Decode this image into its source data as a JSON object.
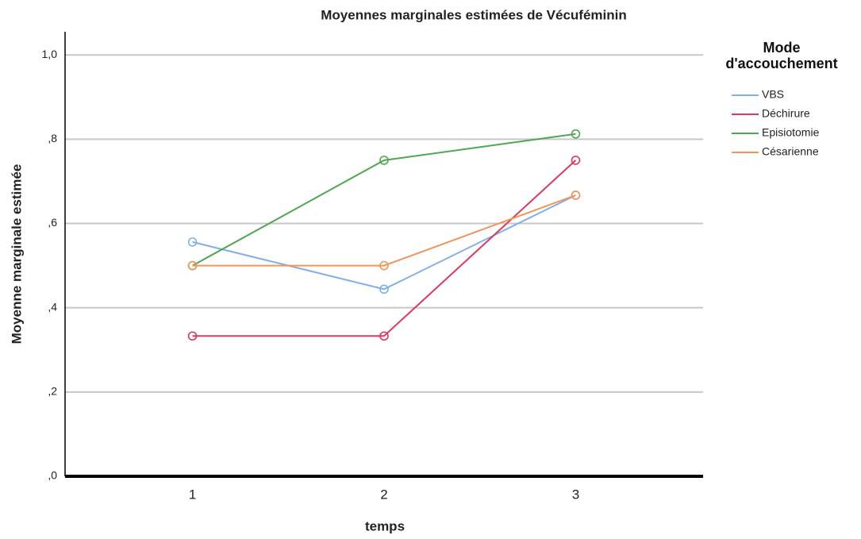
{
  "chart_data": {
    "type": "line",
    "title": "Moyennes marginales estimées de Vécuféminin",
    "x_label": "temps",
    "y_label": "Moyenne marginale estimée",
    "legend_title": "Mode d'accouchement",
    "categories": [
      "1",
      "2",
      "3"
    ],
    "series": [
      {
        "name": "VBS",
        "color": "#7fb0e8",
        "values": [
          0.556,
          0.444,
          0.667
        ]
      },
      {
        "name": "Déchirure",
        "color": "#e0375f",
        "values": [
          0.333,
          0.333,
          0.75
        ]
      },
      {
        "name": "Episiotomie",
        "color": "#4fa84f",
        "values": [
          0.5,
          0.75,
          0.8125
        ]
      },
      {
        "name": "Césarienne",
        "color": "#f0965a",
        "values": [
          0.5,
          0.5,
          0.667
        ]
      }
    ],
    "ylim": [
      0,
      1.055
    ],
    "yticks": [
      {
        "value": 0,
        "label": ",0"
      },
      {
        "value": 0.2,
        "label": ",2"
      },
      {
        "value": 0.4,
        "label": ",4"
      },
      {
        "value": 0.6,
        "label": ",6"
      },
      {
        "value": 0.8,
        "label": ",8"
      },
      {
        "value": 1.0,
        "label": "1,0"
      }
    ],
    "grid": true,
    "legend": "right"
  }
}
